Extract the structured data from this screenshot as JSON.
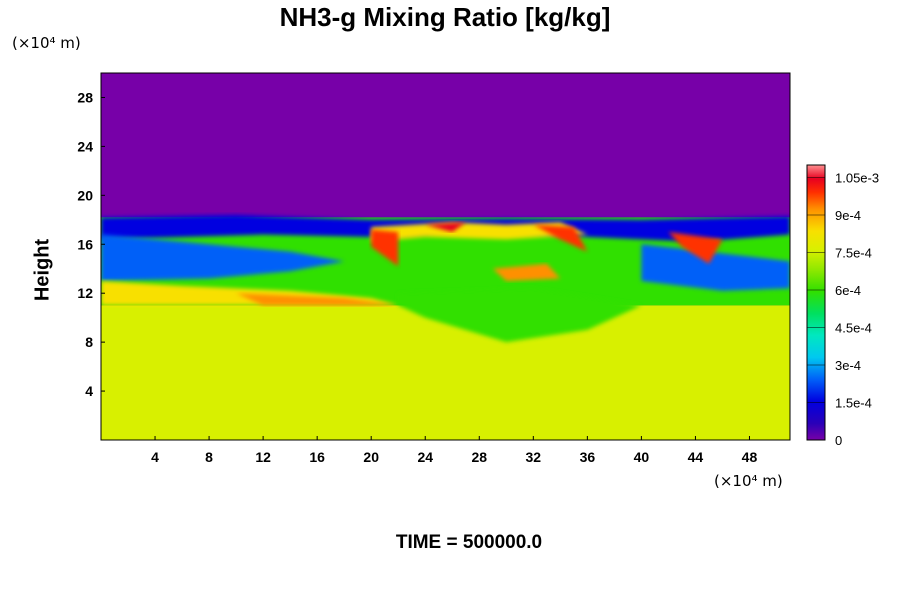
{
  "chart_data": {
    "type": "heatmap",
    "title": "NH3-g Mixing Ratio [kg/kg]",
    "ylabel": "Height",
    "x_unit_label": "(×10⁴ m)",
    "y_unit_label": "(×10⁴ m)",
    "footer": "TIME = 500000.0",
    "xlim": [
      0,
      51
    ],
    "ylim": [
      0,
      30
    ],
    "x_ticks": [
      4,
      8,
      12,
      16,
      20,
      24,
      28,
      32,
      36,
      40,
      44,
      48
    ],
    "y_ticks": [
      4,
      8,
      12,
      16,
      20,
      24,
      28
    ],
    "colorbar": {
      "range": [
        0,
        0.0011
      ],
      "tick_labels": [
        "0",
        "1.5e-4",
        "3e-4",
        "4.5e-4",
        "6e-4",
        "7.5e-4",
        "9e-4",
        "1.05e-3"
      ],
      "tick_values": [
        0,
        0.00015,
        0.0003,
        0.00045,
        0.0006,
        0.00075,
        0.0009,
        0.00105
      ]
    },
    "regions": [
      {
        "name": "upper",
        "height_range": [
          18,
          30
        ],
        "value": 0
      },
      {
        "name": "middle",
        "height_range": [
          12,
          18
        ],
        "value_range": [
          0,
          0.0011
        ]
      },
      {
        "name": "lower",
        "height_range": [
          0,
          11
        ],
        "value": 0.00078
      }
    ]
  }
}
